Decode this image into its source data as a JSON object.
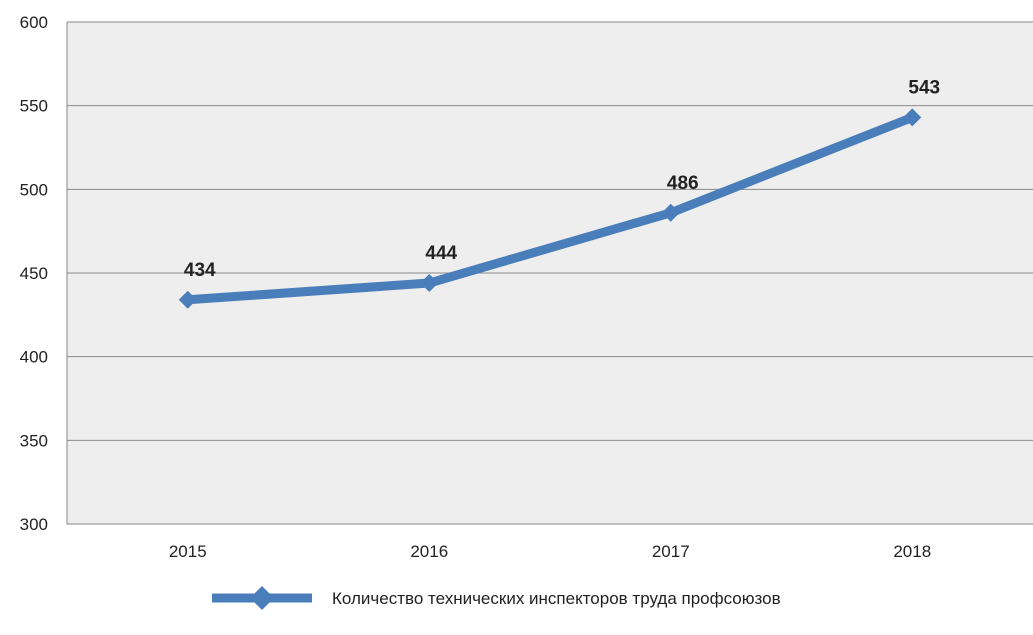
{
  "chart_data": {
    "type": "line",
    "title": "",
    "xlabel": "",
    "ylabel": "",
    "categories": [
      "2015",
      "2016",
      "2017",
      "2018"
    ],
    "series": [
      {
        "name": "Количество технических инспекторов труда профсоюзов",
        "values": [
          434,
          444,
          486,
          543
        ],
        "color": "#4a7ebb"
      }
    ],
    "ylim": [
      300,
      600
    ],
    "yticks": [
      "300",
      "350",
      "400",
      "450",
      "500",
      "550",
      "600"
    ],
    "data_labels": [
      "434",
      "444",
      "486",
      "543"
    ],
    "grid": true,
    "plot_background": "#eeeeee",
    "legend_position": "bottom",
    "marker": "diamond"
  }
}
